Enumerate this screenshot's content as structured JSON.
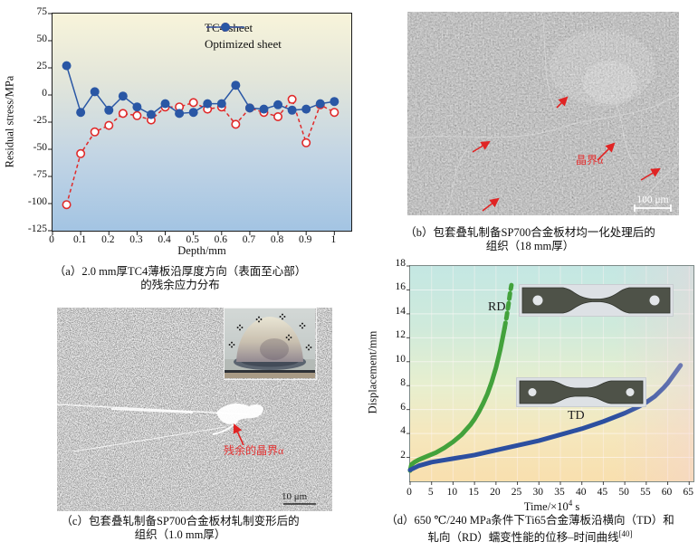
{
  "chart_data": [
    {
      "id": "residual-stress-profile",
      "type": "line",
      "title": "",
      "xlabel": "Depth/mm",
      "ylabel": "Residual stress/MPa",
      "xlim": [
        0,
        1.06
      ],
      "ylim": [
        -125,
        75
      ],
      "xticks": [
        0,
        0.1,
        0.2,
        0.3,
        0.4,
        0.5,
        0.6,
        0.7,
        0.8,
        0.9,
        1.0
      ],
      "yticks": [
        75,
        50,
        25,
        0,
        -25,
        -50,
        -75,
        -100,
        -125
      ],
      "grid": false,
      "legend_position": "top-right",
      "x": [
        0.05,
        0.1,
        0.15,
        0.2,
        0.25,
        0.3,
        0.35,
        0.4,
        0.45,
        0.5,
        0.55,
        0.6,
        0.65,
        0.7,
        0.75,
        0.8,
        0.85,
        0.9,
        0.95,
        1.0
      ],
      "series": [
        {
          "name": "TC4 sheet",
          "color": "#e02a2a",
          "line": "dashed",
          "marker": "open",
          "values": [
            -101,
            -54,
            -34,
            -28,
            -17,
            -19,
            -23,
            -11,
            -11,
            -7,
            -13,
            -11,
            -27,
            -12,
            -16,
            -20,
            -4,
            -44,
            -9,
            -16
          ]
        },
        {
          "name": "Optimized sheet",
          "color": "#2a57a5",
          "line": "solid",
          "marker": "filled",
          "values": [
            27,
            -16,
            3,
            -14,
            -1,
            -11,
            -18,
            -8,
            -17,
            -16,
            -8,
            -8,
            9,
            -12,
            -13,
            -9,
            -14,
            -13,
            -8,
            -6
          ]
        }
      ]
    },
    {
      "id": "creep-displacement-time",
      "type": "line",
      "title": "",
      "xlabel": "Time/×10⁴ s",
      "xlabel_pre": "Time/×10",
      "xlabel_sup": "4",
      "xlabel_post": " s",
      "ylabel": "Displacement/mm",
      "xlim": [
        0,
        66
      ],
      "ylim": [
        0,
        18
      ],
      "xticks": [
        0,
        5,
        10,
        15,
        20,
        25,
        30,
        35,
        40,
        45,
        50,
        55,
        60,
        65
      ],
      "yticks": [
        2,
        4,
        6,
        8,
        10,
        12,
        14,
        16,
        18
      ],
      "grid": true,
      "series": [
        {
          "name": "RD",
          "color": "#43a23c",
          "width": 5,
          "dashed_above": 13.6,
          "x": [
            0,
            0.3,
            1,
            2,
            4,
            6,
            8,
            10,
            12,
            14,
            15,
            16,
            17,
            18,
            19,
            20,
            21,
            22,
            22.5,
            23,
            23.3,
            23.6
          ],
          "values": [
            0.9,
            1.4,
            1.6,
            1.8,
            2.1,
            2.4,
            2.8,
            3.3,
            3.9,
            4.7,
            5.2,
            5.8,
            6.5,
            7.3,
            8.3,
            9.5,
            11.0,
            12.8,
            13.8,
            15.0,
            15.8,
            16.4
          ]
        },
        {
          "name": "TD",
          "color": "#2c4fa0",
          "width": 5,
          "x": [
            0,
            2,
            5,
            10,
            15,
            20,
            25,
            30,
            35,
            40,
            45,
            50,
            53,
            55,
            57,
            59,
            60,
            61,
            62,
            63
          ],
          "values": [
            0.95,
            1.3,
            1.6,
            1.9,
            2.2,
            2.6,
            3.0,
            3.4,
            3.9,
            4.4,
            5.0,
            5.7,
            6.2,
            6.6,
            7.1,
            7.8,
            8.2,
            8.7,
            9.2,
            9.7
          ]
        }
      ]
    }
  ],
  "panel_a": {
    "caption1": "（a）2.0 mm厚TC4薄板沿厚度方向（表面至心部）",
    "caption2": "的残余应力分布"
  },
  "panel_b": {
    "caption1": "（b）包套叠轧制备SP700合金板材均一化处理后的",
    "caption2": "组织（18 mm厚）",
    "annotation": "晶界α",
    "scale_bar": "100 μm",
    "arrow_color": "#e02424"
  },
  "panel_c": {
    "caption1": "（c）包套叠轧制备SP700合金板材轧制变形后的",
    "caption2": "组织（1.0 mm厚）",
    "annotation": "残余的晶界α",
    "scale_bar": "10 μm",
    "arrow_color": "#e02424"
  },
  "panel_d": {
    "caption1": "（d）650 ℃/240 MPa条件下Ti65合金薄板沿横向（TD）和",
    "caption2": "轧向（RD）蠕变性能的位移–时间曲线",
    "caption_sup": "[40]",
    "label_rd": "RD",
    "label_td": "TD"
  }
}
